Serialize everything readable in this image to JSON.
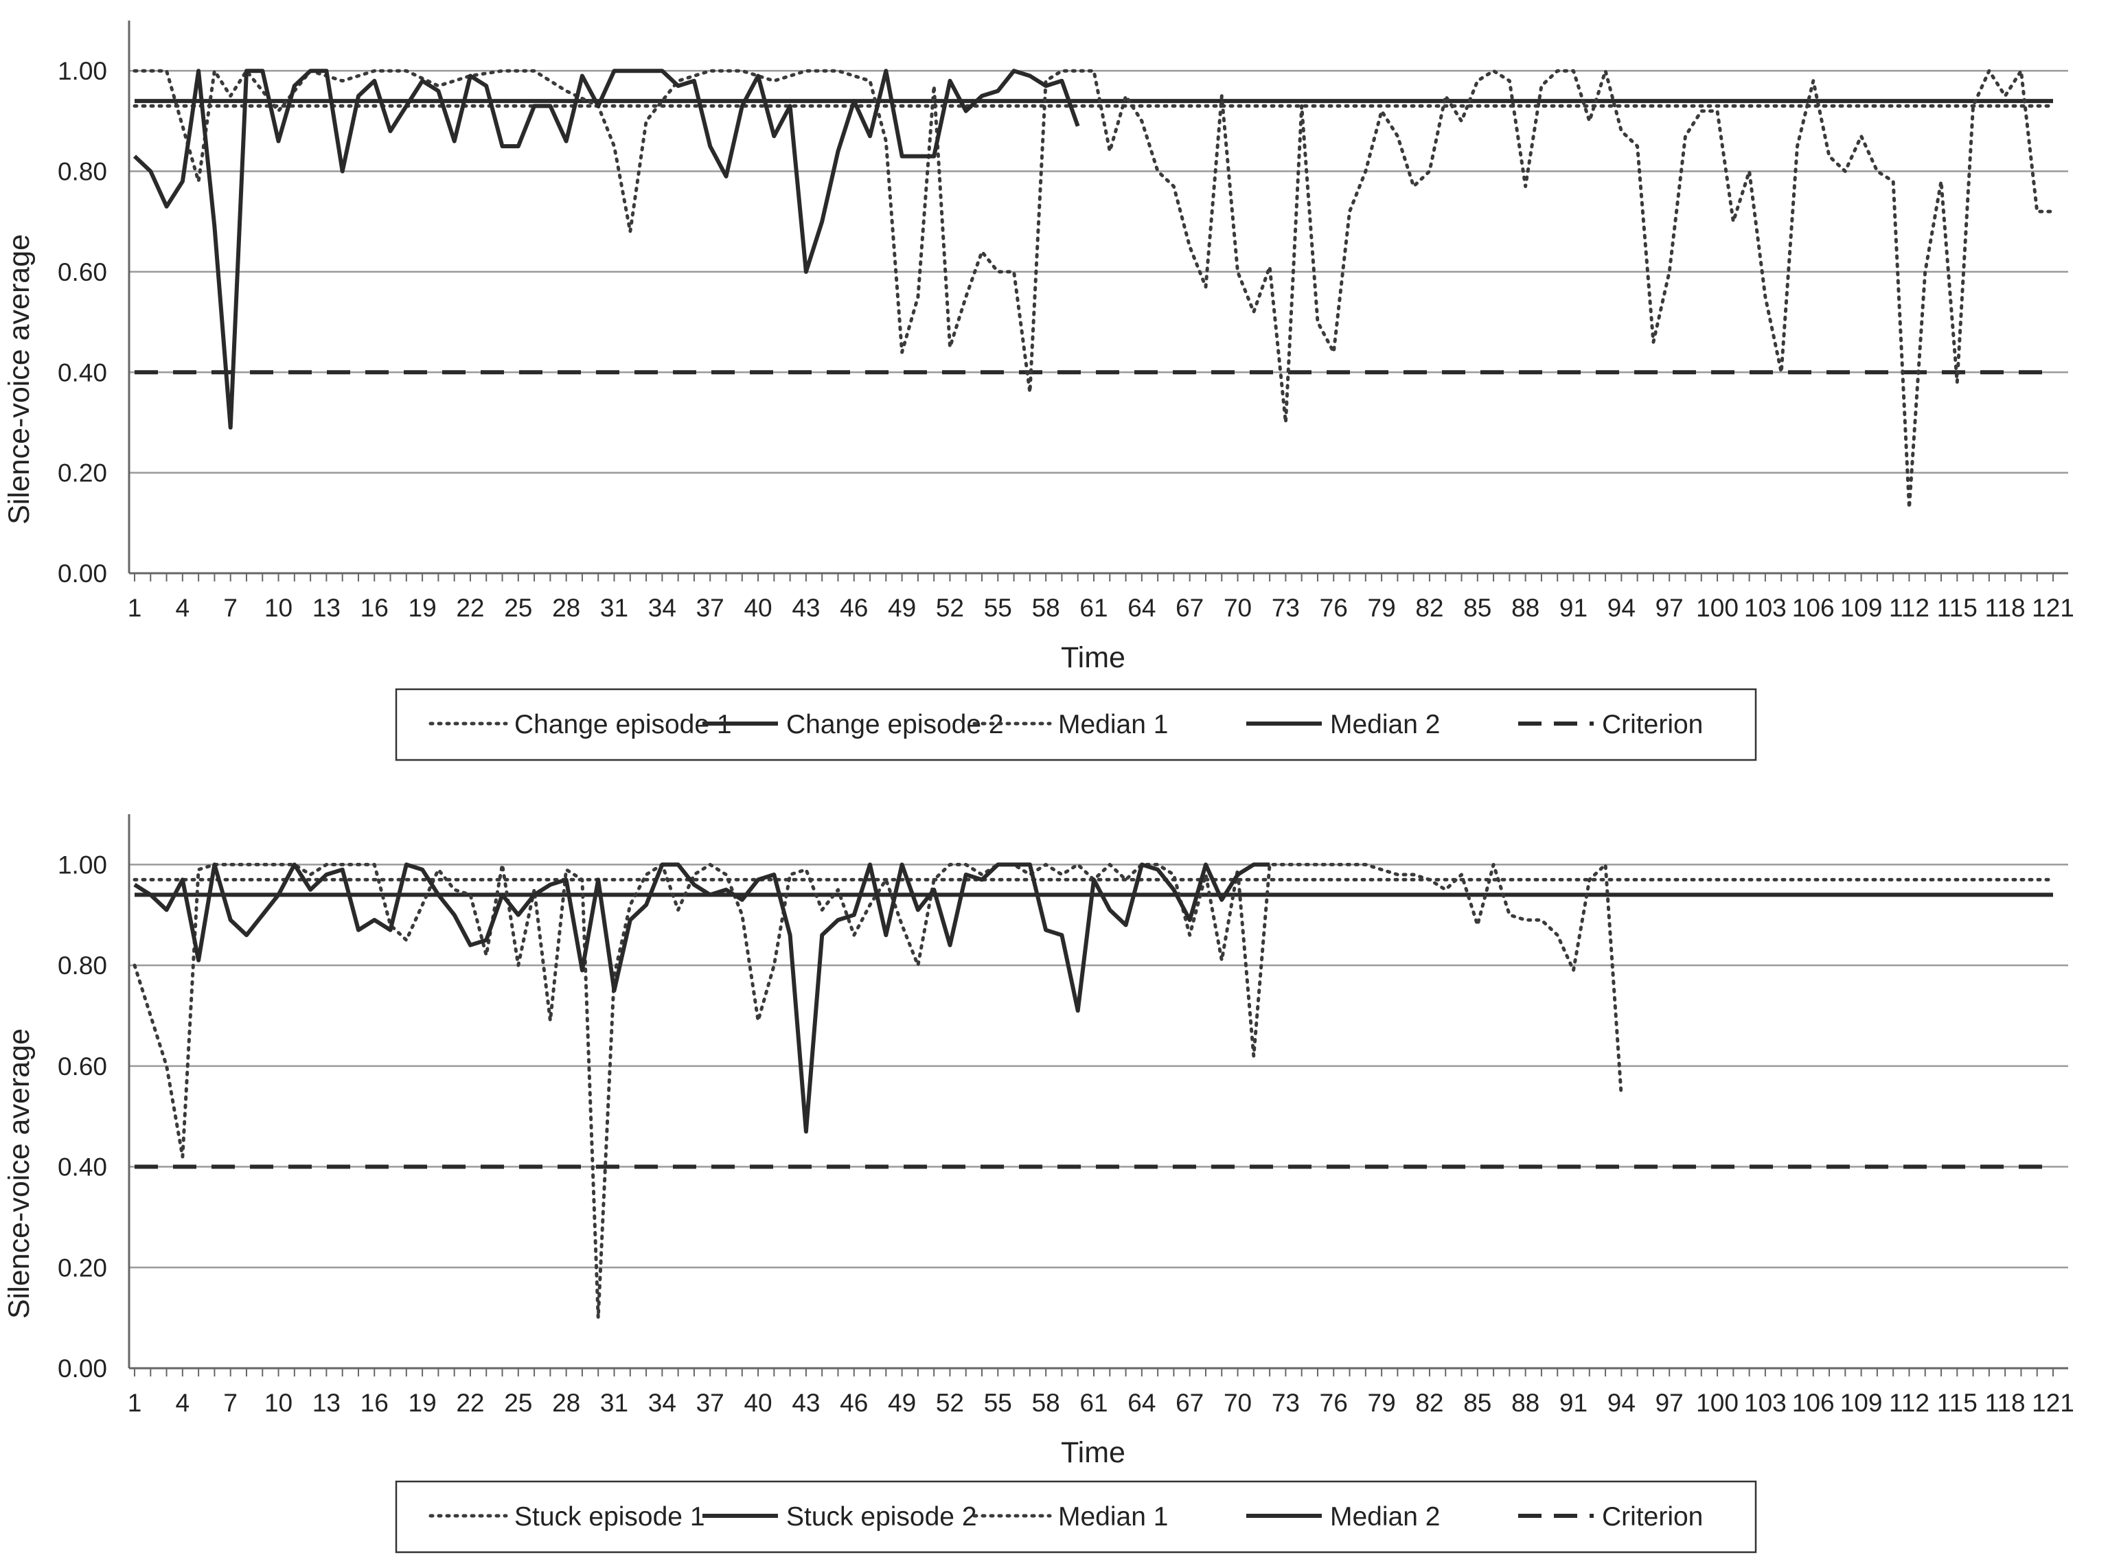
{
  "chart_data": [
    {
      "type": "line",
      "title": "",
      "xlabel": "Time",
      "ylabel": "Silence-voice average",
      "ylim": [
        0,
        1.1
      ],
      "y_ticks": [
        "0.00",
        "0.20",
        "0.40",
        "0.60",
        "0.80",
        "1.00"
      ],
      "x_ticks": [
        "1",
        "4",
        "7",
        "10",
        "13",
        "16",
        "19",
        "22",
        "25",
        "28",
        "31",
        "34",
        "37",
        "40",
        "43",
        "46",
        "49",
        "52",
        "55",
        "58",
        "61",
        "64",
        "67",
        "70",
        "73",
        "76",
        "79",
        "82",
        "85",
        "88",
        "91",
        "94",
        "97",
        "100",
        "103",
        "106",
        "109",
        "112",
        "115",
        "118",
        "121"
      ],
      "grid": "horizontal",
      "legend_position": "bottom",
      "series": [
        {
          "name": "Change episode 1",
          "style": "dotted",
          "color": "#3a3a3a",
          "x": [
            1,
            3,
            5,
            6,
            7,
            8,
            10,
            12,
            14,
            16,
            18,
            20,
            22,
            24,
            26,
            28,
            30,
            31,
            32,
            33,
            35,
            37,
            39,
            41,
            43,
            45,
            47,
            48,
            49,
            50,
            51,
            52,
            53,
            54,
            55,
            56,
            57,
            58,
            59,
            60,
            61,
            62,
            63,
            64,
            65,
            66,
            67,
            68,
            69,
            70,
            71,
            72,
            73,
            74,
            75,
            76,
            77,
            78,
            79,
            80,
            81,
            82,
            83,
            84,
            85,
            86,
            87,
            88,
            89,
            90,
            91,
            92,
            93,
            94,
            95,
            96,
            97,
            98,
            99,
            100,
            101,
            102,
            103,
            104,
            105,
            106,
            107,
            108,
            109,
            110,
            111,
            112,
            113,
            114,
            115,
            116,
            117,
            118,
            119,
            120,
            121
          ],
          "values": [
            1.0,
            1.0,
            0.78,
            1.0,
            0.95,
            1.0,
            0.92,
            1.0,
            0.98,
            1.0,
            1.0,
            0.97,
            0.99,
            1.0,
            1.0,
            0.96,
            0.93,
            0.85,
            0.68,
            0.9,
            0.98,
            1.0,
            1.0,
            0.98,
            1.0,
            1.0,
            0.98,
            0.86,
            0.44,
            0.55,
            0.97,
            0.45,
            0.55,
            0.64,
            0.6,
            0.6,
            0.36,
            0.98,
            1.0,
            1.0,
            1.0,
            0.84,
            0.95,
            0.9,
            0.8,
            0.77,
            0.65,
            0.57,
            0.95,
            0.6,
            0.52,
            0.61,
            0.3,
            0.93,
            0.5,
            0.44,
            0.72,
            0.8,
            0.92,
            0.87,
            0.77,
            0.8,
            0.95,
            0.9,
            0.98,
            1.0,
            0.98,
            0.77,
            0.97,
            1.0,
            1.0,
            0.9,
            1.0,
            0.88,
            0.85,
            0.46,
            0.6,
            0.87,
            0.92,
            0.92,
            0.7,
            0.8,
            0.55,
            0.4,
            0.85,
            0.98,
            0.83,
            0.8,
            0.87,
            0.8,
            0.78,
            0.13,
            0.6,
            0.78,
            0.38,
            0.93,
            1.0,
            0.95,
            1.0,
            0.72,
            0.72
          ]
        },
        {
          "name": "Change episode 2",
          "style": "solid",
          "color": "#2a2a2a",
          "x": [
            1,
            2,
            3,
            4,
            5,
            6,
            7,
            8,
            9,
            10,
            11,
            12,
            13,
            14,
            15,
            16,
            17,
            18,
            19,
            20,
            21,
            22,
            23,
            24,
            25,
            26,
            27,
            28,
            29,
            30,
            31,
            32,
            33,
            34,
            35,
            36,
            37,
            38,
            39,
            40,
            41,
            42,
            43,
            44,
            45,
            46,
            47,
            48,
            49,
            50,
            51,
            52,
            53,
            54,
            55,
            56,
            57,
            58,
            59,
            60
          ],
          "values": [
            0.83,
            0.8,
            0.73,
            0.78,
            1.0,
            0.69,
            0.29,
            1.0,
            1.0,
            0.86,
            0.97,
            1.0,
            1.0,
            0.8,
            0.95,
            0.98,
            0.88,
            0.93,
            0.98,
            0.96,
            0.86,
            0.99,
            0.97,
            0.85,
            0.85,
            0.93,
            0.93,
            0.86,
            0.99,
            0.93,
            1.0,
            1.0,
            1.0,
            1.0,
            0.97,
            0.98,
            0.85,
            0.79,
            0.93,
            0.99,
            0.87,
            0.93,
            0.6,
            0.7,
            0.84,
            0.94,
            0.87,
            1.0,
            0.83,
            0.83,
            0.83,
            0.98,
            0.92,
            0.95,
            0.96,
            1.0,
            0.99,
            0.97,
            0.98,
            0.89
          ]
        },
        {
          "name": "Median 1",
          "style": "dotted",
          "color": "#3a3a3a",
          "x": [
            1,
            121
          ],
          "values": [
            0.93,
            0.93
          ]
        },
        {
          "name": "Median 2",
          "style": "solid",
          "color": "#2a2a2a",
          "x": [
            1,
            121
          ],
          "values": [
            0.94,
            0.94
          ]
        },
        {
          "name": "Criterion",
          "style": "dashed",
          "color": "#2a2a2a",
          "x": [
            1,
            121
          ],
          "values": [
            0.4,
            0.4
          ]
        }
      ]
    },
    {
      "type": "line",
      "title": "",
      "xlabel": "Time",
      "ylabel": "Silence-voice average",
      "ylim": [
        0,
        1.1
      ],
      "y_ticks": [
        "0.00",
        "0.20",
        "0.40",
        "0.60",
        "0.80",
        "1.00"
      ],
      "x_ticks": [
        "1",
        "4",
        "7",
        "10",
        "13",
        "16",
        "19",
        "22",
        "25",
        "28",
        "31",
        "34",
        "37",
        "40",
        "43",
        "46",
        "49",
        "52",
        "55",
        "58",
        "61",
        "64",
        "67",
        "70",
        "73",
        "76",
        "79",
        "82",
        "85",
        "88",
        "91",
        "94",
        "97",
        "100",
        "103",
        "106",
        "109",
        "112",
        "115",
        "118",
        "121"
      ],
      "grid": "horizontal",
      "legend_position": "bottom",
      "series": [
        {
          "name": "Stuck episode 1",
          "style": "dotted",
          "color": "#3a3a3a",
          "x": [
            1,
            2,
            3,
            4,
            5,
            6,
            7,
            8,
            9,
            10,
            11,
            12,
            13,
            14,
            15,
            16,
            17,
            18,
            19,
            20,
            21,
            22,
            23,
            24,
            25,
            26,
            27,
            28,
            29,
            30,
            31,
            32,
            33,
            34,
            35,
            36,
            37,
            38,
            39,
            40,
            41,
            42,
            43,
            44,
            45,
            46,
            47,
            48,
            49,
            50,
            51,
            52,
            53,
            54,
            55,
            56,
            57,
            58,
            59,
            60,
            61,
            62,
            63,
            64,
            65,
            66,
            67,
            68,
            69,
            70,
            71,
            72,
            73,
            74,
            75,
            76,
            77,
            78,
            79,
            80,
            81,
            82,
            83,
            84,
            85,
            86,
            87,
            88,
            89,
            90,
            91,
            92,
            93,
            94
          ],
          "values": [
            0.8,
            0.7,
            0.6,
            0.42,
            0.99,
            1.0,
            1.0,
            1.0,
            1.0,
            1.0,
            1.0,
            0.98,
            1.0,
            1.0,
            1.0,
            1.0,
            0.88,
            0.85,
            0.92,
            0.99,
            0.95,
            0.94,
            0.82,
            1.0,
            0.8,
            0.95,
            0.69,
            0.99,
            0.97,
            0.1,
            0.78,
            0.92,
            0.98,
            1.0,
            0.91,
            0.98,
            1.0,
            0.98,
            0.9,
            0.69,
            0.8,
            0.98,
            0.99,
            0.91,
            0.95,
            0.86,
            0.92,
            0.97,
            0.88,
            0.8,
            0.97,
            1.0,
            1.0,
            0.98,
            1.0,
            1.0,
            0.98,
            1.0,
            0.98,
            1.0,
            0.97,
            1.0,
            0.97,
            1.0,
            1.0,
            0.98,
            0.86,
            0.98,
            0.81,
            0.99,
            0.62,
            1.0,
            1.0,
            1.0,
            1.0,
            1.0,
            1.0,
            1.0,
            0.99,
            0.98,
            0.98,
            0.97,
            0.95,
            0.98,
            0.88,
            1.0,
            0.9,
            0.89,
            0.89,
            0.86,
            0.79,
            0.97,
            1.0,
            0.54
          ]
        },
        {
          "name": "Stuck episode 2",
          "style": "solid",
          "color": "#2a2a2a",
          "x": [
            1,
            2,
            3,
            4,
            5,
            6,
            7,
            8,
            9,
            10,
            11,
            12,
            13,
            14,
            15,
            16,
            17,
            18,
            19,
            20,
            21,
            22,
            23,
            24,
            25,
            26,
            27,
            28,
            29,
            30,
            31,
            32,
            33,
            34,
            35,
            36,
            37,
            38,
            39,
            40,
            41,
            42,
            43,
            44,
            45,
            46,
            47,
            48,
            49,
            50,
            51,
            52,
            53,
            54,
            55,
            56,
            57,
            58,
            59,
            60,
            61,
            62,
            63,
            64,
            65,
            66,
            67,
            68,
            69,
            70,
            71,
            72
          ],
          "values": [
            0.96,
            0.94,
            0.91,
            0.97,
            0.81,
            1.0,
            0.89,
            0.86,
            0.9,
            0.94,
            1.0,
            0.95,
            0.98,
            0.99,
            0.87,
            0.89,
            0.87,
            1.0,
            0.99,
            0.94,
            0.9,
            0.84,
            0.85,
            0.94,
            0.9,
            0.94,
            0.96,
            0.97,
            0.79,
            0.97,
            0.75,
            0.89,
            0.92,
            1.0,
            1.0,
            0.96,
            0.94,
            0.95,
            0.93,
            0.97,
            0.98,
            0.86,
            0.47,
            0.86,
            0.89,
            0.9,
            1.0,
            0.86,
            1.0,
            0.91,
            0.95,
            0.84,
            0.98,
            0.97,
            1.0,
            1.0,
            1.0,
            0.87,
            0.86,
            0.71,
            0.97,
            0.91,
            0.88,
            1.0,
            0.99,
            0.95,
            0.89,
            1.0,
            0.93,
            0.98,
            1.0,
            1.0
          ]
        },
        {
          "name": "Median 1",
          "style": "dotted",
          "color": "#3a3a3a",
          "x": [
            1,
            121
          ],
          "values": [
            0.97,
            0.97
          ]
        },
        {
          "name": "Median 2",
          "style": "solid",
          "color": "#2a2a2a",
          "x": [
            1,
            121
          ],
          "values": [
            0.94,
            0.94
          ]
        },
        {
          "name": "Criterion",
          "style": "dashed",
          "color": "#2a2a2a",
          "x": [
            1,
            121
          ],
          "values": [
            0.4,
            0.4
          ]
        }
      ]
    }
  ]
}
